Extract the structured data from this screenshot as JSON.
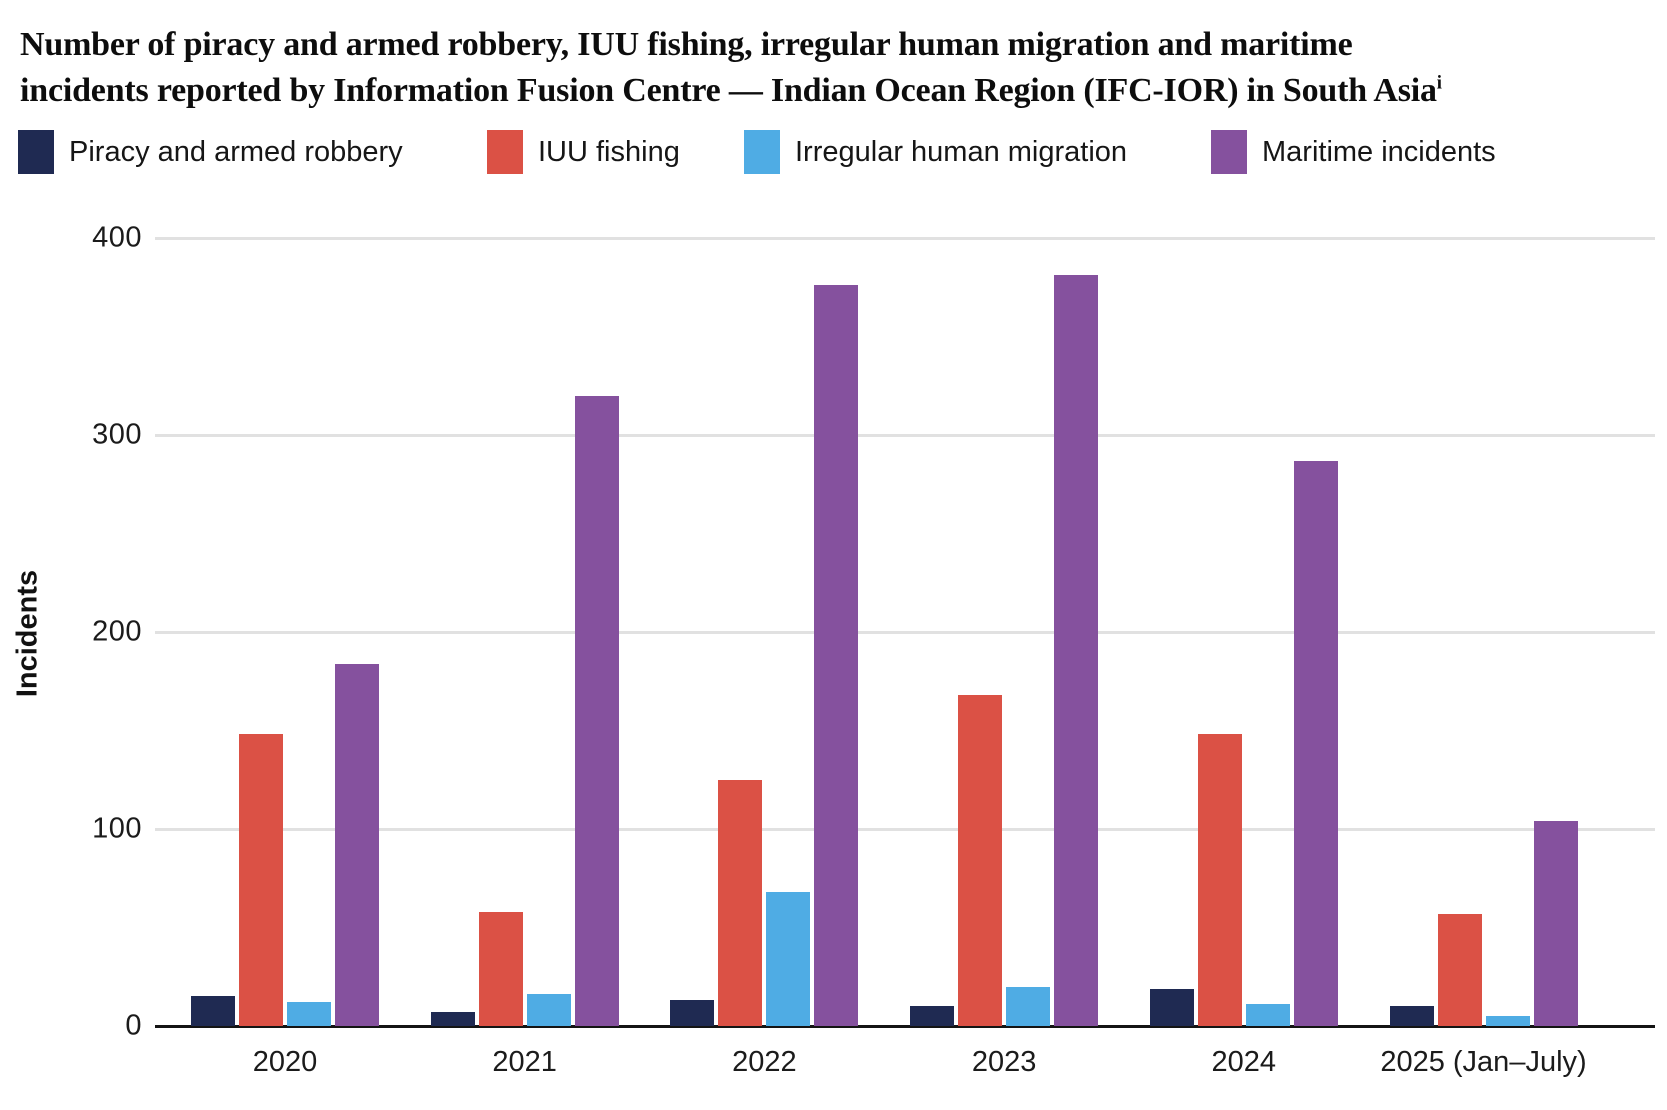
{
  "title": {
    "line1": "Number of piracy and armed robbery, IUU fishing, irregular human migration and maritime",
    "line2": "incidents reported by Information Fusion Centre — Indian Ocean Region (IFC-IOR) in South Asia",
    "footnote_marker": "i"
  },
  "y_axis": {
    "label": "Incidents",
    "ticks": [
      0,
      100,
      200,
      300,
      400
    ]
  },
  "chart_data": {
    "type": "bar",
    "title": "Number of piracy and armed robbery, IUU fishing, irregular human migration and maritime incidents reported by Information Fusion Centre — Indian Ocean Region (IFC-IOR) in South Asia",
    "categories": [
      "2020",
      "2021",
      "2022",
      "2023",
      "2024",
      "2025 (Jan–July)"
    ],
    "series": [
      {
        "name": "Piracy and armed robbery",
        "color": "#1F2A52",
        "values": [
          15,
          7,
          13,
          10,
          19,
          10
        ]
      },
      {
        "name": "IUU fishing",
        "color": "#DB5145",
        "values": [
          148,
          58,
          125,
          168,
          148,
          57
        ]
      },
      {
        "name": "Irregular human migration",
        "color": "#4FACE4",
        "values": [
          12,
          16,
          68,
          20,
          11,
          5
        ]
      },
      {
        "name": "Maritime incidents",
        "color": "#85519E",
        "values": [
          184,
          320,
          376,
          381,
          287,
          104
        ]
      }
    ],
    "xlabel": "",
    "ylabel": "Incidents",
    "ylim": [
      0,
      400
    ],
    "grid": true,
    "legend_position": "top"
  }
}
